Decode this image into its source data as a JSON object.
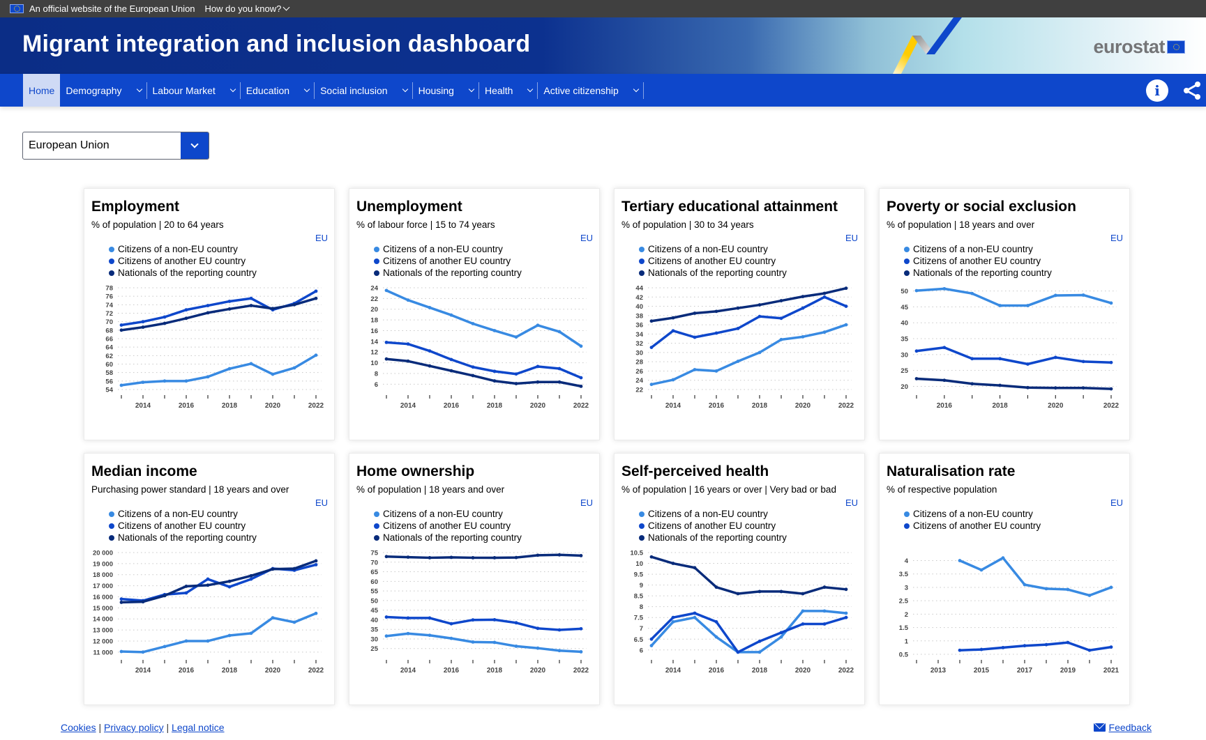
{
  "topbar": {
    "official_text": "An official website of the European Union",
    "how_label": "How do you know?"
  },
  "header": {
    "title": "Migrant integration and inclusion dashboard",
    "brand": "eurostat"
  },
  "nav": {
    "items": [
      {
        "label": "Home",
        "dropdown": false,
        "active": true
      },
      {
        "label": "Demography",
        "dropdown": true
      },
      {
        "label": "Labour Market",
        "dropdown": true
      },
      {
        "label": "Education",
        "dropdown": true
      },
      {
        "label": "Social inclusion",
        "dropdown": true
      },
      {
        "label": "Housing",
        "dropdown": true
      },
      {
        "label": "Health",
        "dropdown": true
      },
      {
        "label": "Active citizenship",
        "dropdown": true
      }
    ],
    "info_icon": "info-icon",
    "share_icon": "share-icon"
  },
  "country_select": {
    "value": "European Union"
  },
  "colors": {
    "non_eu": "#388ae2",
    "another_eu": "#0e47cb",
    "nationals": "#082b7a",
    "accent": "#0e47cb"
  },
  "legend_labels": {
    "non_eu": "Citizens of a non-EU country",
    "another_eu": "Citizens of another EU country",
    "nationals": "Nationals of the reporting country"
  },
  "geo_label": "EU",
  "chart_data": [
    {
      "type": "line",
      "title": "Employment",
      "subtitle": "% of population | 20 to 64 years",
      "geo": "EU",
      "x": [
        2013,
        2014,
        2015,
        2016,
        2017,
        2018,
        2019,
        2020,
        2021,
        2022
      ],
      "xticks": [
        2014,
        2016,
        2018,
        2020,
        2022
      ],
      "ylim": [
        54,
        78
      ],
      "yticks": [
        54,
        56,
        58,
        60,
        62,
        64,
        66,
        68,
        70,
        72,
        74,
        76,
        78
      ],
      "grid": true,
      "legend": "top",
      "series": [
        {
          "name": "Citizens of a non-EU country",
          "key": "non_eu",
          "values": [
            55.0,
            55.7,
            56.0,
            56.0,
            57.0,
            58.9,
            60.1,
            57.6,
            59.1,
            62.1
          ]
        },
        {
          "name": "Citizens of another EU country",
          "key": "another_eu",
          "values": [
            69.2,
            70.0,
            71.1,
            72.8,
            73.8,
            74.8,
            75.5,
            72.8,
            74.3,
            77.2
          ]
        },
        {
          "name": "Nationals of the reporting country",
          "key": "nationals",
          "values": [
            68.0,
            68.7,
            69.6,
            70.8,
            72.1,
            73.0,
            73.8,
            73.1,
            74.0,
            75.5
          ]
        }
      ]
    },
    {
      "type": "line",
      "title": "Unemployment",
      "subtitle": "% of labour force | 15 to 74 years",
      "geo": "EU",
      "x": [
        2013,
        2014,
        2015,
        2016,
        2017,
        2018,
        2019,
        2020,
        2021,
        2022
      ],
      "xticks": [
        2014,
        2016,
        2018,
        2020,
        2022
      ],
      "ylim": [
        5,
        24
      ],
      "yticks": [
        6,
        8,
        10,
        12,
        14,
        16,
        18,
        20,
        22,
        24
      ],
      "grid": true,
      "legend": "top",
      "series": [
        {
          "name": "Citizens of a non-EU country",
          "key": "non_eu",
          "values": [
            23.5,
            21.7,
            20.3,
            18.9,
            17.3,
            16.0,
            14.8,
            17.0,
            15.8,
            13.1
          ]
        },
        {
          "name": "Citizens of another EU country",
          "key": "another_eu",
          "values": [
            13.8,
            13.5,
            12.2,
            10.6,
            9.2,
            8.4,
            7.9,
            9.3,
            8.9,
            7.2
          ]
        },
        {
          "name": "Nationals of the reporting country",
          "key": "nationals",
          "values": [
            10.7,
            10.3,
            9.4,
            8.5,
            7.6,
            6.6,
            6.1,
            6.4,
            6.4,
            5.6
          ]
        }
      ]
    },
    {
      "type": "line",
      "title": "Tertiary educational attainment",
      "subtitle": "% of population | 30 to 34 years",
      "geo": "EU",
      "x": [
        2013,
        2014,
        2015,
        2016,
        2017,
        2018,
        2019,
        2020,
        2021,
        2022
      ],
      "xticks": [
        2014,
        2016,
        2018,
        2020,
        2022
      ],
      "ylim": [
        22,
        44
      ],
      "yticks": [
        22,
        24,
        26,
        28,
        30,
        32,
        34,
        36,
        38,
        40,
        42,
        44
      ],
      "grid": true,
      "legend": "top",
      "series": [
        {
          "name": "Citizens of a non-EU country",
          "key": "non_eu",
          "values": [
            23.1,
            24.1,
            26.3,
            26.0,
            28.1,
            30.0,
            32.8,
            33.4,
            34.4,
            36.0
          ]
        },
        {
          "name": "Citizens of another EU country",
          "key": "another_eu",
          "values": [
            31.1,
            34.7,
            33.3,
            34.2,
            35.2,
            37.8,
            37.4,
            39.6,
            42.0,
            40.0
          ]
        },
        {
          "name": "Nationals of the reporting country",
          "key": "nationals",
          "values": [
            36.8,
            37.5,
            38.5,
            38.9,
            39.6,
            40.3,
            41.2,
            42.1,
            42.8,
            43.9
          ]
        }
      ]
    },
    {
      "type": "line",
      "title": "Poverty or social exclusion",
      "subtitle": "% of population | 18 years and over",
      "geo": "EU",
      "x": [
        2015,
        2016,
        2017,
        2018,
        2019,
        2020,
        2021,
        2022
      ],
      "xticks": [
        2016,
        2018,
        2020,
        2022
      ],
      "ylim": [
        19,
        51
      ],
      "yticks": [
        20,
        25,
        30,
        35,
        40,
        45,
        50
      ],
      "grid": true,
      "legend": "top",
      "series": [
        {
          "name": "Citizens of a non-EU country",
          "key": "non_eu",
          "values": [
            50.1,
            50.7,
            49.2,
            45.4,
            45.4,
            48.6,
            48.7,
            46.2
          ]
        },
        {
          "name": "Citizens of another EU country",
          "key": "another_eu",
          "values": [
            31.1,
            32.2,
            28.7,
            28.7,
            27.0,
            29.1,
            27.8,
            27.5
          ]
        },
        {
          "name": "Nationals of the reporting country",
          "key": "nationals",
          "values": [
            22.4,
            21.9,
            20.8,
            20.3,
            19.6,
            19.5,
            19.5,
            19.2
          ]
        }
      ]
    },
    {
      "type": "line",
      "title": "Median income",
      "subtitle": "Purchasing power standard | 18 years and over",
      "geo": "EU",
      "x": [
        2013,
        2014,
        2015,
        2016,
        2017,
        2018,
        2019,
        2020,
        2021,
        2022
      ],
      "xticks": [
        2014,
        2016,
        2018,
        2020,
        2022
      ],
      "ylim": [
        10800,
        20000
      ],
      "yticks": [
        11000,
        12000,
        13000,
        14000,
        15000,
        16000,
        17000,
        18000,
        19000,
        20000
      ],
      "ytick_labels": [
        "11 000",
        "12 000",
        "13 000",
        "14 000",
        "15 000",
        "16 000",
        "17 000",
        "18 000",
        "19 000",
        "20 000"
      ],
      "grid": true,
      "legend": "top",
      "series": [
        {
          "name": "Citizens of a non-EU country",
          "key": "non_eu",
          "values": [
            11050,
            11000,
            11500,
            12000,
            12000,
            12500,
            12700,
            14100,
            13700,
            14500
          ]
        },
        {
          "name": "Citizens of another EU country",
          "key": "another_eu",
          "values": [
            15800,
            15650,
            16200,
            16350,
            17600,
            16900,
            17600,
            18550,
            18400,
            18900
          ]
        },
        {
          "name": "Nationals of the reporting country",
          "key": "nationals",
          "values": [
            15500,
            15550,
            16100,
            16950,
            17050,
            17400,
            17900,
            18500,
            18550,
            19250
          ]
        }
      ]
    },
    {
      "type": "line",
      "title": "Home ownership",
      "subtitle": "% of population | 18 years and over",
      "geo": "EU",
      "x": [
        2013,
        2014,
        2015,
        2016,
        2017,
        2018,
        2019,
        2020,
        2021,
        2022
      ],
      "xticks": [
        2014,
        2016,
        2018,
        2020,
        2022
      ],
      "ylim": [
        22,
        75
      ],
      "yticks": [
        25,
        30,
        35,
        40,
        45,
        50,
        55,
        60,
        65,
        70,
        75
      ],
      "grid": true,
      "legend": "top",
      "series": [
        {
          "name": "Citizens of a non-EU country",
          "key": "non_eu",
          "values": [
            31.5,
            32.8,
            31.9,
            30.3,
            28.4,
            28.2,
            26.2,
            25.2,
            23.9,
            23.3
          ]
        },
        {
          "name": "Citizens of another EU country",
          "key": "another_eu",
          "values": [
            41.4,
            40.9,
            40.9,
            37.9,
            39.9,
            40.0,
            38.4,
            35.5,
            34.7,
            35.3
          ]
        },
        {
          "name": "Nationals of the reporting country",
          "key": "nationals",
          "values": [
            72.9,
            72.6,
            72.3,
            72.5,
            72.3,
            72.3,
            72.4,
            73.6,
            73.8,
            73.4
          ]
        }
      ]
    },
    {
      "type": "line",
      "title": "Self-perceived health",
      "subtitle": "% of population | 16 years or over | Very bad or bad",
      "geo": "EU",
      "x": [
        2013,
        2014,
        2015,
        2016,
        2017,
        2018,
        2019,
        2020,
        2021,
        2022
      ],
      "xticks": [
        2014,
        2016,
        2018,
        2020,
        2022
      ],
      "ylim": [
        5.8,
        10.5
      ],
      "yticks": [
        6,
        6.5,
        7,
        7.5,
        8,
        8.5,
        9,
        9.5,
        10,
        10.5
      ],
      "grid": true,
      "legend": "top",
      "series": [
        {
          "name": "Citizens of a non-EU country",
          "key": "non_eu",
          "values": [
            6.2,
            7.3,
            7.5,
            6.6,
            5.9,
            5.9,
            6.6,
            7.8,
            7.8,
            7.7
          ]
        },
        {
          "name": "Citizens of another EU country",
          "key": "another_eu",
          "values": [
            6.5,
            7.5,
            7.7,
            7.3,
            5.9,
            6.4,
            6.8,
            7.2,
            7.2,
            7.5
          ]
        },
        {
          "name": "Nationals of the reporting country",
          "key": "nationals",
          "values": [
            10.3,
            10.0,
            9.8,
            8.9,
            8.6,
            8.7,
            8.7,
            8.6,
            8.9,
            8.8
          ]
        }
      ]
    },
    {
      "type": "line",
      "title": "Naturalisation rate",
      "subtitle": "% of respective population",
      "geo": "EU",
      "x": [
        2012,
        2013,
        2014,
        2015,
        2016,
        2017,
        2018,
        2019,
        2020,
        2021
      ],
      "xticks": [
        2013,
        2015,
        2017,
        2019,
        2021
      ],
      "ylim": [
        0.5,
        4.3
      ],
      "yticks": [
        0.5,
        1,
        1.5,
        2,
        2.5,
        3,
        3.5,
        4
      ],
      "grid": true,
      "legend": "top",
      "series": [
        {
          "name": "Citizens of a non-EU country",
          "key": "non_eu",
          "values": [
            null,
            null,
            4.0,
            3.65,
            4.1,
            3.1,
            2.95,
            2.92,
            2.7,
            3.0
          ]
        },
        {
          "name": "Citizens of another EU country",
          "key": "another_eu",
          "values": [
            null,
            null,
            0.65,
            0.68,
            0.75,
            0.82,
            0.86,
            0.94,
            0.65,
            0.77
          ]
        }
      ]
    }
  ],
  "footer": {
    "links": [
      "Cookies",
      "Privacy policy",
      "Legal notice"
    ],
    "separator": "|",
    "feedback": "Feedback"
  }
}
